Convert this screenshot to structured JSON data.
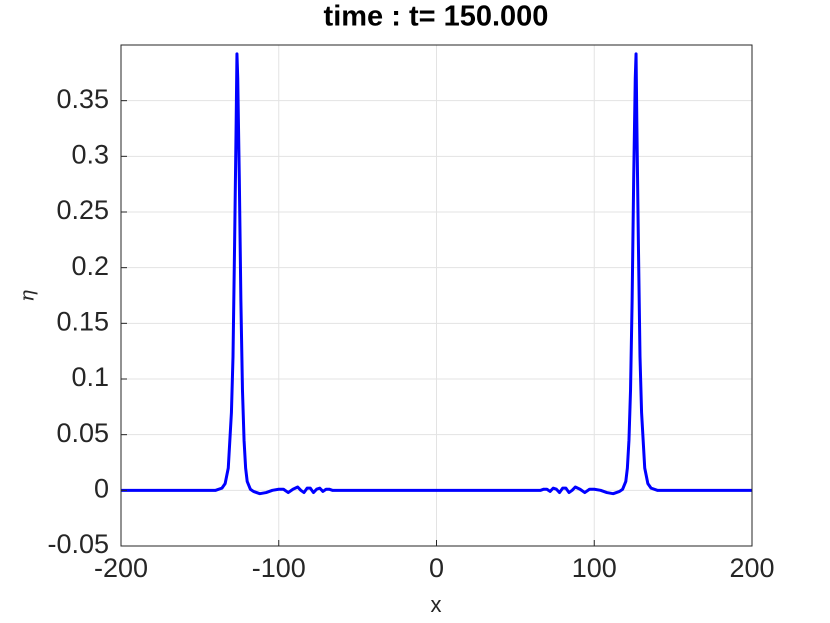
{
  "chart_data": {
    "type": "line",
    "title": "time : t= 150.000",
    "x_label": "x",
    "y_label": "η",
    "x": [
      -200,
      -140,
      -136,
      -134,
      -132,
      -130,
      -129,
      -128,
      -127,
      -126.5,
      -126,
      -125,
      -124,
      -123,
      -122,
      -121,
      -120,
      -118,
      -116,
      -112,
      -108,
      -104,
      -100,
      -97,
      -94,
      -91,
      -88,
      -86,
      -84,
      -82,
      -80,
      -78,
      -76,
      -74,
      -72,
      -70,
      -68,
      -66,
      -60,
      60,
      66,
      68,
      70,
      72,
      74,
      76,
      78,
      80,
      82,
      84,
      86,
      88,
      91,
      94,
      97,
      100,
      104,
      108,
      112,
      116,
      118,
      120,
      121,
      122,
      123,
      124,
      125,
      126,
      126.5,
      127,
      128,
      129,
      130,
      132,
      134,
      136,
      140,
      200
    ],
    "values": [
      0,
      0,
      0.002,
      0.006,
      0.02,
      0.07,
      0.12,
      0.22,
      0.33,
      0.392,
      0.37,
      0.28,
      0.17,
      0.09,
      0.045,
      0.02,
      0.008,
      0.001,
      -0.001,
      -0.003,
      -0.002,
      0,
      0.001,
      0.001,
      -0.002,
      0.001,
      0.003,
      0,
      -0.002,
      0.002,
      0.002,
      -0.002,
      0.001,
      0.002,
      -0.001,
      0.001,
      0.001,
      0,
      0,
      0,
      0,
      0.001,
      0.001,
      -0.001,
      0.002,
      0.001,
      -0.002,
      0.002,
      0.002,
      -0.002,
      0,
      0.003,
      0.001,
      -0.002,
      0.001,
      0.001,
      0,
      -0.002,
      -0.003,
      -0.001,
      0.001,
      0.008,
      0.02,
      0.045,
      0.09,
      0.17,
      0.28,
      0.37,
      0.392,
      0.33,
      0.22,
      0.12,
      0.07,
      0.02,
      0.006,
      0.002,
      0,
      0
    ],
    "color": "#0000ff",
    "xlim": [
      -200,
      200
    ],
    "xticks": [
      -200,
      -100,
      0,
      100,
      200
    ],
    "ylim": [
      -0.05,
      0.4
    ],
    "yticks": [
      -0.05,
      0,
      0.05,
      0.1,
      0.15,
      0.2,
      0.25,
      0.3,
      0.35
    ],
    "grid": true
  }
}
